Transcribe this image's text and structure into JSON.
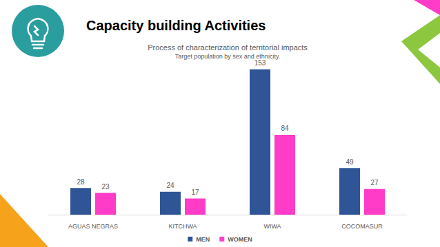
{
  "slide_title": "Capacity building Activities",
  "chart_data": {
    "type": "bar",
    "title": "Process of characterization of territorial impacts",
    "subtitle": "Target population by sex and ethnicity.",
    "categories": [
      "AGUAS NEGRAS",
      "KITCHWA",
      "WIWA",
      "COCOMASUR"
    ],
    "series": [
      {
        "name": "MEN",
        "color": "#2f5597",
        "values": [
          28,
          24,
          153,
          49
        ]
      },
      {
        "name": "WOMEN",
        "color": "#ff3cc8",
        "values": [
          23,
          17,
          84,
          27
        ]
      }
    ],
    "ylim": [
      0,
      160
    ],
    "grid": false,
    "legend": "bottom",
    "data_labels": true,
    "tick_labels": "x"
  }
}
